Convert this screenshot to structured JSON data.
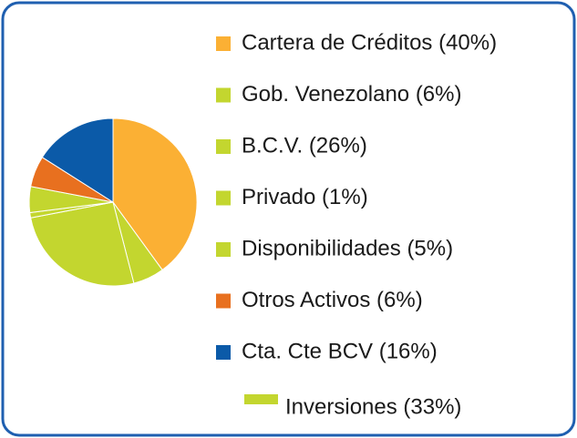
{
  "chart_data": {
    "type": "pie",
    "categories": [
      "Cartera de Créditos (40%)",
      "Gob. Venezolano (6%)",
      "B.C.V. (26%)",
      "Privado (1%)",
      "Disponibilidades (5%)",
      "Otros Activos (6%)",
      "Cta. Cte BCV (16%)"
    ],
    "values": [
      40,
      6,
      26,
      1,
      5,
      6,
      16
    ],
    "colors": [
      "#fbb034",
      "#c3d62f",
      "#c3d62f",
      "#c3d62f",
      "#c3d62f",
      "#e8701f",
      "#0b5aa8"
    ],
    "group_label": "Inversiones (33%)",
    "group_color": "#c3d62f"
  }
}
